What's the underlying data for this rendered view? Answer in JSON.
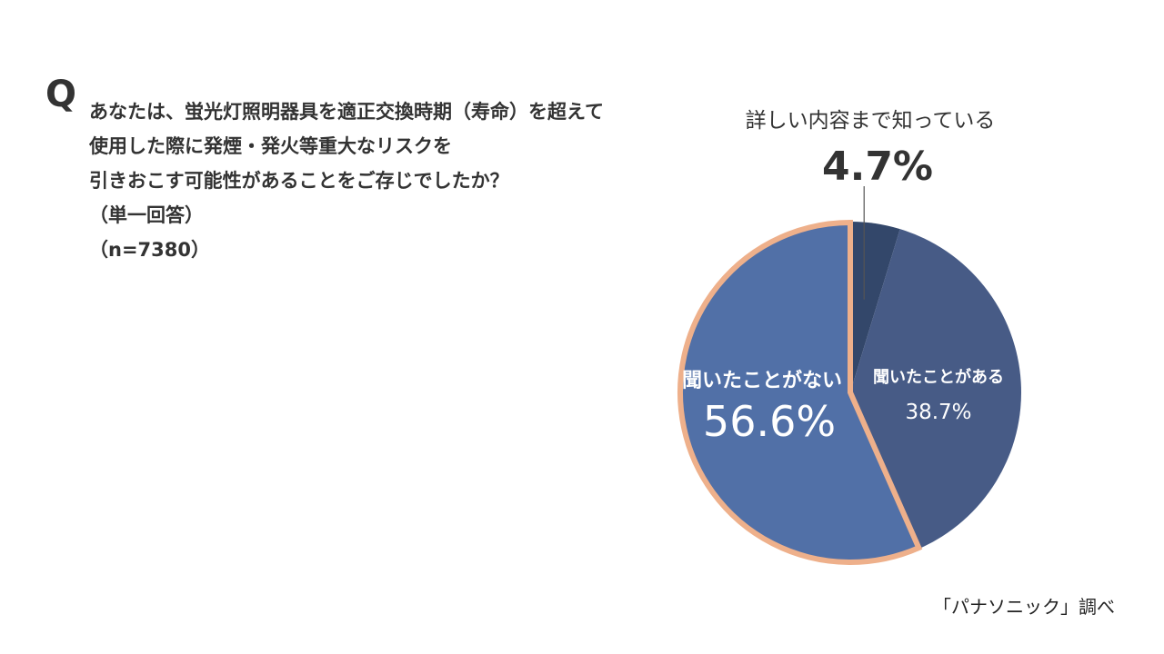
{
  "question": {
    "mark": "Q",
    "lines": [
      "あなたは、蛍光灯照明器具を適正交換時期（寿命）を超えて",
      "使用した際に発煙・発火等重大なリスクを",
      "引きおこす可能性があることをご存じでしたか？"
    ],
    "answer_type": "（単一回答）",
    "sample": "（n=7380）"
  },
  "chart_data": {
    "type": "pie",
    "start_angle_deg": 0,
    "direction": "clockwise",
    "slices": [
      {
        "label": "詳しい内容まで知っている",
        "value": 4.7,
        "value_label": "4.7%",
        "color": "#33476a"
      },
      {
        "label": "聞いたことがある",
        "value": 38.7,
        "value_label": "38.7%",
        "color": "#475b86"
      },
      {
        "label": "聞いたことがない",
        "value": 56.6,
        "value_label": "56.6%",
        "color": "#5170a7",
        "highlight": true
      }
    ],
    "highlight_outline_color": "#eeb08b",
    "label_color_inside": "#ffffff",
    "label_color_outside": "#333333"
  },
  "source": "「パナソニック」調べ"
}
